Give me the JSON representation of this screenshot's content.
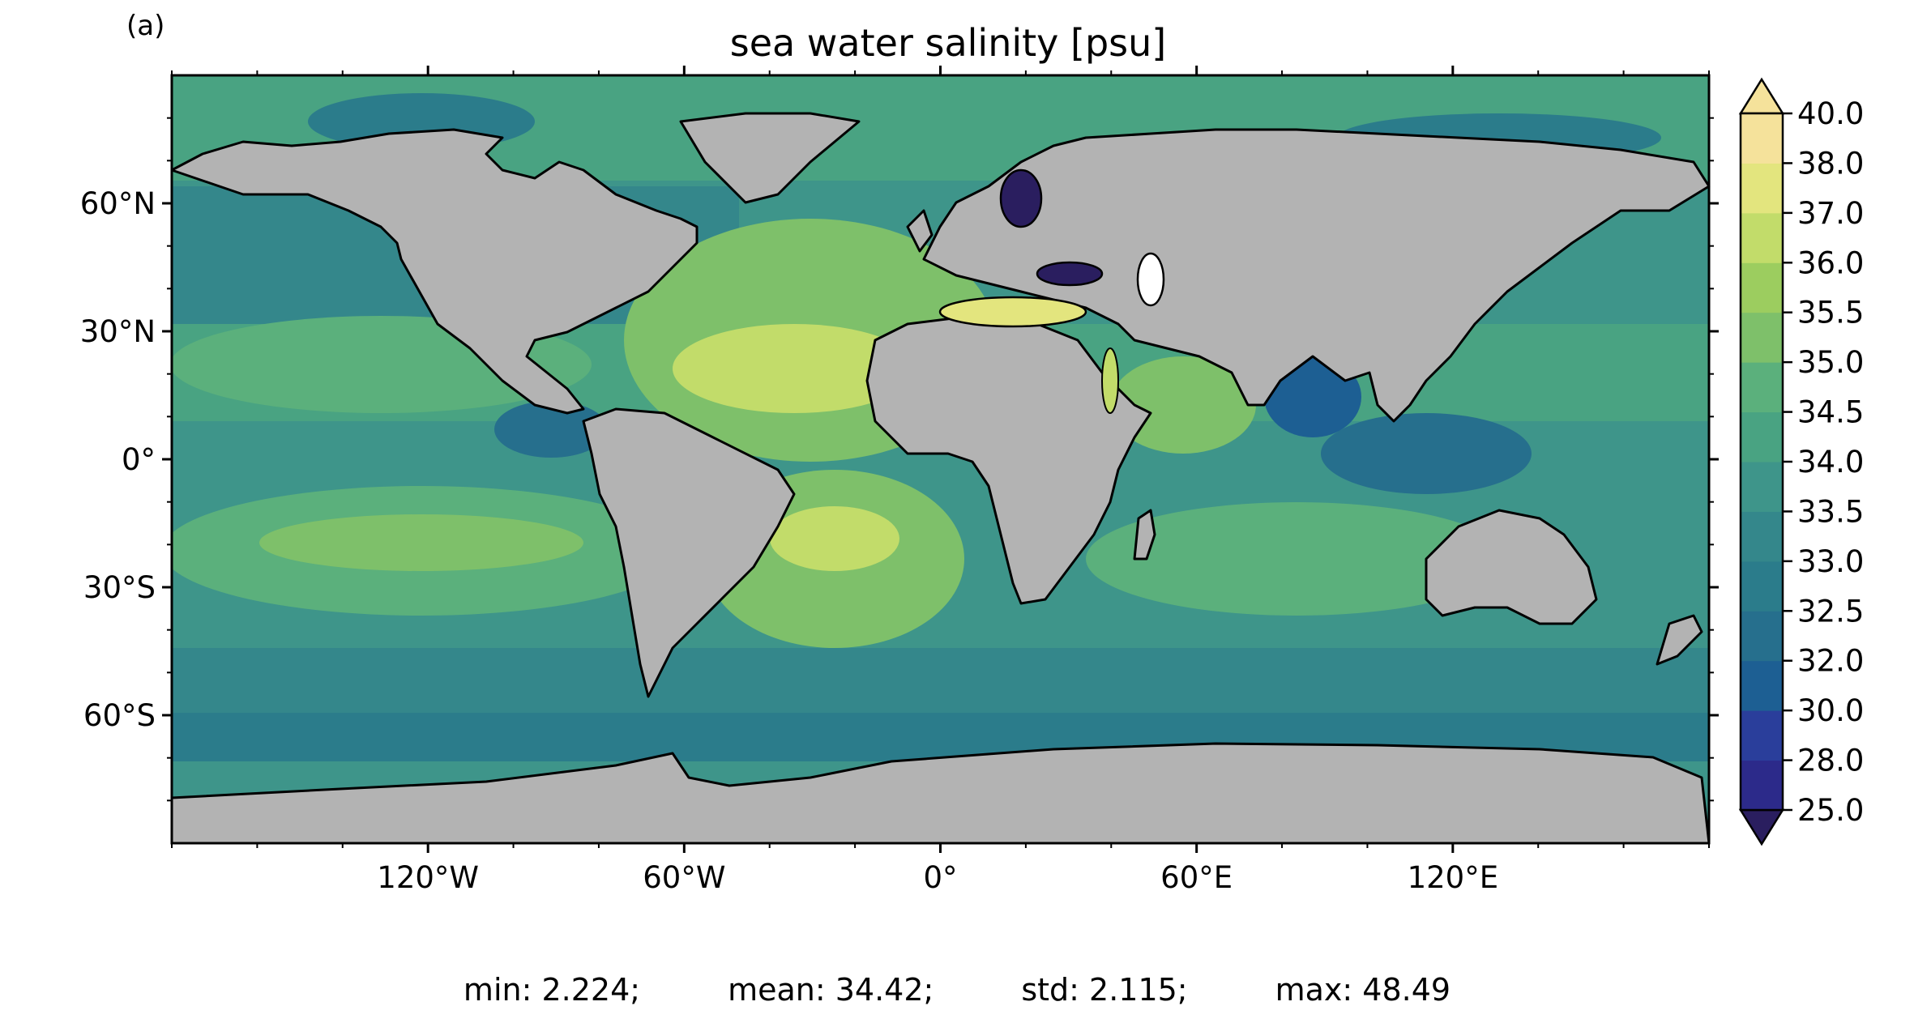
{
  "panel_label": "(a)",
  "map": {
    "title": "sea water salinity [psu]",
    "projection": "PlateCarree",
    "lat_ticks": [
      "60°N",
      "30°N",
      "0°",
      "30°S",
      "60°S"
    ],
    "lon_ticks": [
      "120°W",
      "60°W",
      "0°",
      "60°E",
      "120°E"
    ],
    "land_color": "#b3b3b3",
    "coastline_color": "#000000",
    "colorbar": {
      "levels": [
        "25.0",
        "28.0",
        "30.0",
        "32.0",
        "32.5",
        "33.0",
        "33.5",
        "34.0",
        "34.5",
        "35.0",
        "35.5",
        "36.0",
        "37.0",
        "38.0",
        "40.0"
      ],
      "colors": [
        "#2a1e5f",
        "#2c2a8a",
        "#2a3e9b",
        "#1d5f93",
        "#266f8d",
        "#2b7c8b",
        "#34878b",
        "#3e958a",
        "#49a382",
        "#5bb07c",
        "#7ec06a",
        "#9ccd5f",
        "#c2dc6a",
        "#e3e57e",
        "#f5e29b"
      ],
      "extend": "both"
    },
    "stats": {
      "min": "min: 2.224;",
      "mean": "mean: 34.42;",
      "std": "std: 2.115;",
      "max": "max: 48.49"
    }
  }
}
